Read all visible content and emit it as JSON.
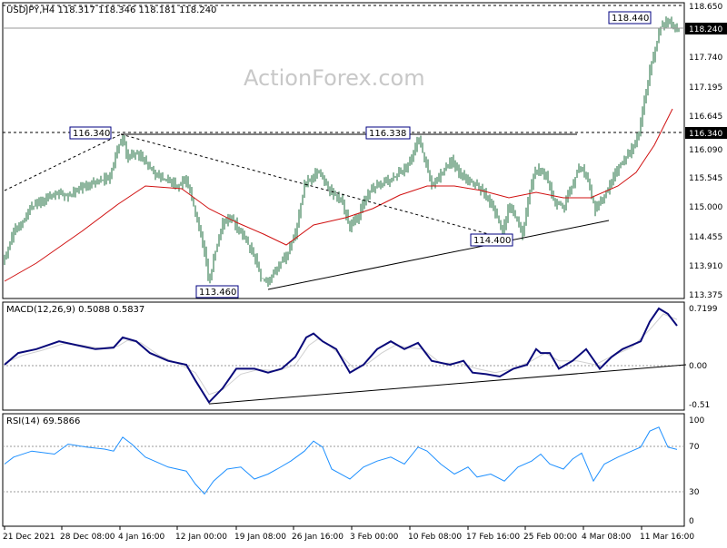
{
  "watermark": "ActionForex.com",
  "colors": {
    "candle": "#1e6e3c",
    "ema": "#d01010",
    "macd": "#0a0a7a",
    "signal": "#d0d0d0",
    "rsi": "#1e90ff",
    "grid": "#999999",
    "line": "#000000"
  },
  "chart_data": [
    {
      "type": "candlestick",
      "title": "USDJPY,H4 118.317 118.346 118.181 118.240",
      "symbol": "USDJPY",
      "timeframe": "H4",
      "ohlc": {
        "open": 118.317,
        "high": 118.346,
        "low": 118.181,
        "close": 118.24
      },
      "ylim": [
        113.375,
        118.7
      ],
      "yticks": [
        "118.650",
        "118.240",
        "117.740",
        "117.195",
        "116.645",
        "116.340",
        "116.090",
        "115.545",
        "115.000",
        "114.455",
        "113.910",
        "113.375"
      ],
      "xticks": [
        "21 Dec 2021",
        "28 Dec 08:00",
        "4 Jan 16:00",
        "12 Jan 00:00",
        "19 Jan 08:00",
        "26 Jan 16:00",
        "3 Feb 00:00",
        "10 Feb 08:00",
        "17 Feb 16:00",
        "25 Feb 00:00",
        "4 Mar 08:00",
        "11 Mar 16:00"
      ],
      "levels": {
        "top": 118.65,
        "resistance": 116.34,
        "current": 118.24
      },
      "annotations": [
        "116.340",
        "116.338",
        "114.400",
        "113.460",
        "118.440"
      ],
      "price_path": [
        [
          0,
          114.05
        ],
        [
          10,
          114.55
        ],
        [
          20,
          114.75
        ],
        [
          30,
          115.0
        ],
        [
          40,
          115.1
        ],
        [
          55,
          115.25
        ],
        [
          70,
          115.2
        ],
        [
          85,
          115.35
        ],
        [
          100,
          115.45
        ],
        [
          115,
          115.55
        ],
        [
          125,
          116.1
        ],
        [
          130,
          116.3
        ],
        [
          135,
          115.9
        ],
        [
          145,
          116.0
        ],
        [
          155,
          115.85
        ],
        [
          165,
          115.6
        ],
        [
          175,
          115.5
        ],
        [
          190,
          115.4
        ],
        [
          200,
          115.5
        ],
        [
          210,
          114.9
        ],
        [
          220,
          114.2
        ],
        [
          225,
          113.6
        ],
        [
          232,
          114.2
        ],
        [
          240,
          114.7
        ],
        [
          250,
          114.8
        ],
        [
          265,
          114.4
        ],
        [
          275,
          114.1
        ],
        [
          282,
          113.7
        ],
        [
          290,
          113.65
        ],
        [
          300,
          113.9
        ],
        [
          310,
          114.1
        ],
        [
          320,
          114.5
        ],
        [
          330,
          115.4
        ],
        [
          338,
          115.55
        ],
        [
          345,
          115.65
        ],
        [
          360,
          115.25
        ],
        [
          370,
          115.15
        ],
        [
          380,
          114.65
        ],
        [
          388,
          114.8
        ],
        [
          398,
          115.2
        ],
        [
          410,
          115.4
        ],
        [
          425,
          115.5
        ],
        [
          440,
          115.7
        ],
        [
          450,
          115.95
        ],
        [
          455,
          116.3
        ],
        [
          460,
          116.0
        ],
        [
          470,
          115.4
        ],
        [
          480,
          115.6
        ],
        [
          492,
          115.85
        ],
        [
          500,
          115.65
        ],
        [
          510,
          115.5
        ],
        [
          520,
          115.4
        ],
        [
          530,
          115.2
        ],
        [
          540,
          114.9
        ],
        [
          548,
          114.55
        ],
        [
          555,
          115.0
        ],
        [
          563,
          114.8
        ],
        [
          570,
          114.5
        ],
        [
          578,
          115.3
        ],
        [
          585,
          115.7
        ],
        [
          595,
          115.6
        ],
        [
          605,
          115.1
        ],
        [
          615,
          115.0
        ],
        [
          625,
          115.4
        ],
        [
          632,
          115.75
        ],
        [
          640,
          115.6
        ],
        [
          650,
          114.95
        ],
        [
          660,
          115.2
        ],
        [
          668,
          115.5
        ],
        [
          678,
          115.8
        ],
        [
          688,
          116.0
        ],
        [
          698,
          116.3
        ],
        [
          703,
          116.9
        ],
        [
          710,
          117.5
        ],
        [
          716,
          117.9
        ],
        [
          722,
          118.3
        ],
        [
          728,
          118.44
        ],
        [
          735,
          118.35
        ],
        [
          742,
          118.24
        ]
      ]
    },
    {
      "type": "line",
      "title": "MACD(12,26,9) 0.5088 0.5837",
      "values": {
        "macd": 0.5088,
        "signal": 0.5837
      },
      "ylim": [
        -0.51,
        0.7199
      ],
      "yticks": [
        "0.7199",
        "0.00",
        "-0.51"
      ],
      "series": [
        {
          "name": "MACD",
          "x_values": [
            0,
            15,
            35,
            60,
            80,
            100,
            120,
            130,
            145,
            160,
            180,
            200,
            210,
            225,
            240,
            255,
            275,
            290,
            305,
            320,
            332,
            340,
            350,
            365,
            380,
            395,
            410,
            425,
            440,
            455,
            470,
            490,
            505,
            515,
            530,
            545,
            560,
            575,
            585,
            590,
            600,
            610,
            625,
            640,
            655,
            668,
            680,
            690,
            700,
            710,
            720,
            730,
            740
          ],
          "values": [
            0.0,
            0.15,
            0.2,
            0.3,
            0.25,
            0.2,
            0.22,
            0.35,
            0.3,
            0.15,
            0.05,
            0.0,
            -0.2,
            -0.48,
            -0.3,
            -0.05,
            -0.05,
            -0.1,
            -0.05,
            0.1,
            0.35,
            0.4,
            0.3,
            0.2,
            -0.1,
            0.0,
            0.2,
            0.3,
            0.2,
            0.28,
            0.05,
            0.0,
            0.05,
            -0.1,
            -0.12,
            -0.15,
            -0.05,
            0.0,
            0.2,
            0.15,
            0.15,
            -0.05,
            0.05,
            0.2,
            -0.05,
            0.1,
            0.2,
            0.25,
            0.3,
            0.55,
            0.72,
            0.65,
            0.5
          ]
        },
        {
          "name": "Signal",
          "x_values": [
            0,
            20,
            40,
            65,
            85,
            105,
            125,
            135,
            150,
            170,
            190,
            210,
            225,
            240,
            260,
            280,
            300,
            320,
            335,
            345,
            355,
            370,
            385,
            400,
            415,
            430,
            445,
            460,
            480,
            500,
            520,
            540,
            560,
            580,
            595,
            610,
            630,
            650,
            670,
            690,
            710,
            725,
            740
          ],
          "values": [
            0.02,
            0.12,
            0.18,
            0.27,
            0.25,
            0.21,
            0.24,
            0.31,
            0.28,
            0.12,
            0.02,
            -0.1,
            -0.38,
            -0.32,
            -0.12,
            -0.06,
            -0.08,
            0.0,
            0.25,
            0.33,
            0.27,
            0.12,
            -0.05,
            0.02,
            0.15,
            0.25,
            0.22,
            0.2,
            0.02,
            0.02,
            -0.05,
            -0.1,
            -0.05,
            0.05,
            0.15,
            0.05,
            0.05,
            0.0,
            0.12,
            0.22,
            0.45,
            0.65,
            0.58
          ]
        }
      ],
      "trendline": [
        [
          225,
          -0.5
        ],
        [
          750,
          0.0
        ]
      ]
    },
    {
      "type": "line",
      "title": "RSI(14) 69.5866",
      "value": 69.5866,
      "ylim": [
        0,
        100
      ],
      "yticks": [
        "100",
        "70",
        "30",
        "0"
      ],
      "levels": [
        70,
        30
      ],
      "series": [
        {
          "name": "RSI",
          "x_values": [
            0,
            10,
            30,
            55,
            70,
            90,
            110,
            120,
            130,
            140,
            155,
            165,
            180,
            200,
            210,
            220,
            230,
            245,
            260,
            275,
            290,
            300,
            315,
            330,
            340,
            350,
            360,
            380,
            395,
            410,
            425,
            440,
            455,
            465,
            480,
            495,
            510,
            520,
            535,
            550,
            565,
            580,
            590,
            600,
            615,
            625,
            635,
            648,
            660,
            675,
            690,
            700,
            710,
            720,
            730,
            740
          ],
          "values": [
            55,
            62,
            68,
            65,
            75,
            72,
            70,
            68,
            82,
            75,
            62,
            58,
            52,
            48,
            35,
            25,
            38,
            50,
            52,
            40,
            45,
            50,
            58,
            68,
            78,
            72,
            50,
            40,
            52,
            58,
            62,
            55,
            72,
            68,
            55,
            45,
            52,
            42,
            45,
            38,
            52,
            58,
            65,
            55,
            50,
            60,
            66,
            38,
            55,
            62,
            68,
            72,
            88,
            92,
            72,
            69.6
          ]
        }
      ]
    }
  ]
}
